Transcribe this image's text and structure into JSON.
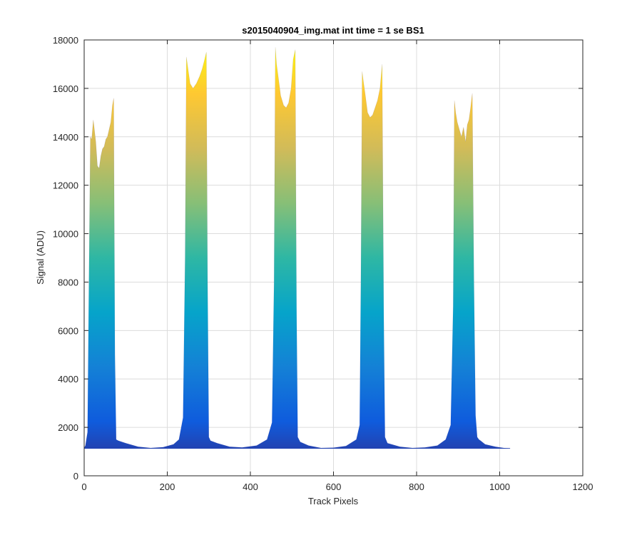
{
  "chart_data": {
    "type": "area",
    "title": "s2015040904_img.mat int time = 1 se   BS1",
    "xlabel": "Track Pixels",
    "ylabel": "Signal (ADU)",
    "xlim": [
      0,
      1200
    ],
    "ylim": [
      0,
      18000
    ],
    "xticks": [
      0,
      200,
      400,
      600,
      800,
      1000,
      1200
    ],
    "yticks": [
      0,
      2000,
      4000,
      6000,
      8000,
      10000,
      12000,
      14000,
      16000,
      18000
    ],
    "grid": true,
    "colormap": [
      "#352a87",
      "#0f5cdd",
      "#1481d6",
      "#06a4ca",
      "#2eb7a4",
      "#87bf77",
      "#d1bb59",
      "#fec832",
      "#f9fb0e"
    ],
    "series": [
      {
        "x": [
          0,
          3,
          8,
          12,
          15,
          18,
          22,
          28,
          32,
          36,
          40,
          44,
          48,
          52,
          56,
          60,
          64,
          68,
          71,
          74,
          77,
          82,
          100,
          130,
          160,
          190,
          215,
          228,
          238,
          243,
          246,
          250,
          255,
          262,
          270,
          278,
          284,
          290,
          294,
          297,
          300,
          304,
          320,
          350,
          380,
          415,
          440,
          452,
          457,
          460,
          463,
          467,
          473,
          480,
          486,
          492,
          498,
          503,
          508,
          511,
          514,
          520,
          540,
          570,
          600,
          630,
          655,
          663,
          666,
          669,
          672,
          676,
          682,
          688,
          694,
          700,
          706,
          712,
          717,
          721,
          724,
          730,
          760,
          790,
          820,
          850,
          870,
          882,
          888,
          891,
          894,
          898,
          903,
          908,
          913,
          918,
          922,
          926,
          930,
          934,
          938,
          942,
          946,
          950,
          954,
          965,
          990,
          1010,
          1025
        ],
        "y": [
          1150,
          1250,
          1800,
          9000,
          14000,
          13900,
          14700,
          13800,
          12800,
          12700,
          13200,
          13500,
          13600,
          13900,
          14000,
          14300,
          14600,
          15300,
          15600,
          5000,
          1500,
          1450,
          1350,
          1200,
          1150,
          1180,
          1300,
          1500,
          2400,
          9000,
          17300,
          16800,
          16200,
          16000,
          16200,
          16500,
          16800,
          17200,
          17500,
          8000,
          1600,
          1450,
          1350,
          1200,
          1170,
          1250,
          1500,
          2200,
          8000,
          17700,
          17000,
          16500,
          15700,
          15300,
          15200,
          15400,
          16000,
          17200,
          17600,
          7000,
          1600,
          1400,
          1250,
          1150,
          1160,
          1230,
          1500,
          2100,
          8000,
          16700,
          16300,
          15800,
          15000,
          14800,
          14900,
          15200,
          15500,
          16000,
          17000,
          6500,
          1600,
          1350,
          1200,
          1150,
          1170,
          1250,
          1500,
          2100,
          7000,
          15500,
          15000,
          14600,
          14300,
          14000,
          14400,
          13800,
          14500,
          14700,
          15200,
          15800,
          8000,
          2500,
          1600,
          1500,
          1450,
          1300,
          1200,
          1150,
          1140
        ]
      }
    ]
  }
}
